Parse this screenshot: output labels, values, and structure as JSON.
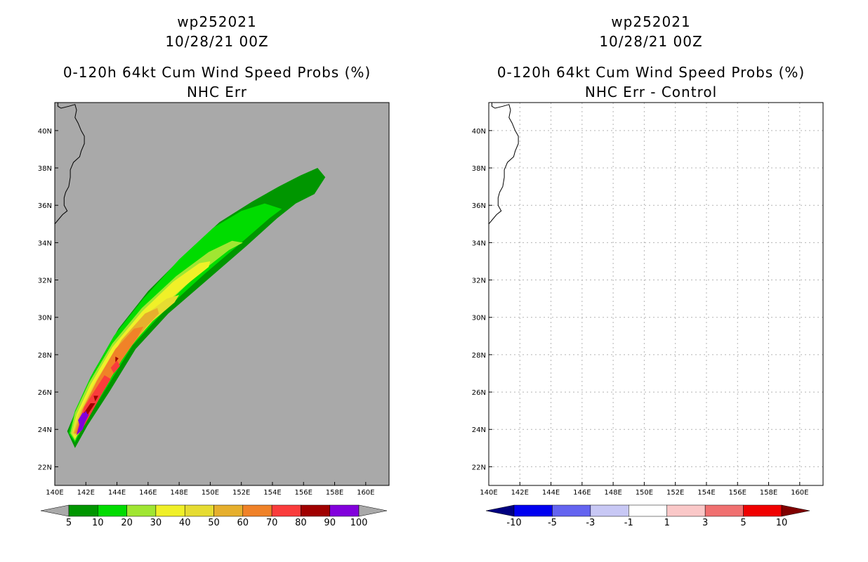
{
  "chart_data": [
    {
      "type": "heatmap",
      "id": "left",
      "storm_id": "wp252021",
      "date": "10/28/21 00Z",
      "title": "0-120h 64kt Cum Wind Speed Probs (%)",
      "subtitle": "NHC Err",
      "x_ticks": [
        "140E",
        "142E",
        "144E",
        "146E",
        "148E",
        "150E",
        "152E",
        "154E",
        "156E",
        "158E",
        "160E"
      ],
      "y_ticks": [
        "22N",
        "24N",
        "26N",
        "28N",
        "30N",
        "32N",
        "34N",
        "36N",
        "38N",
        "40N"
      ],
      "lon_range": [
        140,
        161.5
      ],
      "lat_range": [
        21,
        41.5
      ],
      "grid": false,
      "background": "#a9a9a9",
      "colorbar": {
        "labels": [
          "5",
          "10",
          "20",
          "30",
          "40",
          "50",
          "60",
          "70",
          "80",
          "90",
          "100"
        ],
        "colors": [
          "#009600",
          "#00dc00",
          "#a0e632",
          "#f0f028",
          "#e6dc32",
          "#e6af2d",
          "#f08228",
          "#fa3c3c",
          "#a00000",
          "#8200dc"
        ],
        "under_color": "#a9a9a9",
        "over_color": "#a9a9a9"
      },
      "contours": [
        {
          "level": "5",
          "color": "#009600",
          "points": [
            [
              140.8,
              23.9
            ],
            [
              141.3,
              23.0
            ],
            [
              142.1,
              24.2
            ],
            [
              143.5,
              26.0
            ],
            [
              145.2,
              28.3
            ],
            [
              147.3,
              30.2
            ],
            [
              149.8,
              32.0
            ],
            [
              152.3,
              33.8
            ],
            [
              154.3,
              35.3
            ],
            [
              155.5,
              36.1
            ],
            [
              156.7,
              36.6
            ],
            [
              157.4,
              37.5
            ],
            [
              156.9,
              38.0
            ],
            [
              155.8,
              37.6
            ],
            [
              154.4,
              37.0
            ],
            [
              152.7,
              36.2
            ],
            [
              150.6,
              35.1
            ],
            [
              148.4,
              33.4
            ],
            [
              146.0,
              31.4
            ],
            [
              144.1,
              29.4
            ],
            [
              142.5,
              27.1
            ],
            [
              141.5,
              25.3
            ]
          ]
        },
        {
          "level": "10",
          "color": "#00dc00",
          "points": [
            [
              140.9,
              23.8
            ],
            [
              141.3,
              23.3
            ],
            [
              141.9,
              24.3
            ],
            [
              143.3,
              26.2
            ],
            [
              145.0,
              28.5
            ],
            [
              147.1,
              30.4
            ],
            [
              149.6,
              32.3
            ],
            [
              152.0,
              34.0
            ],
            [
              153.8,
              35.3
            ],
            [
              154.6,
              35.8
            ],
            [
              153.5,
              36.1
            ],
            [
              152.0,
              35.7
            ],
            [
              150.2,
              34.8
            ],
            [
              148.0,
              33.1
            ],
            [
              145.7,
              31.0
            ],
            [
              143.8,
              29.0
            ],
            [
              142.3,
              26.8
            ],
            [
              141.3,
              25.0
            ]
          ]
        },
        {
          "level": "20",
          "color": "#a0e632",
          "points": [
            [
              141.0,
              23.8
            ],
            [
              141.3,
              23.4
            ],
            [
              141.8,
              24.3
            ],
            [
              143.1,
              26.2
            ],
            [
              144.8,
              28.5
            ],
            [
              146.8,
              30.4
            ],
            [
              149.2,
              32.3
            ],
            [
              151.2,
              33.6
            ],
            [
              152.1,
              34.0
            ],
            [
              151.4,
              34.1
            ],
            [
              149.9,
              33.5
            ],
            [
              147.8,
              32.2
            ],
            [
              145.6,
              30.5
            ],
            [
              143.7,
              28.6
            ],
            [
              142.2,
              26.5
            ],
            [
              141.3,
              24.9
            ]
          ]
        },
        {
          "level": "30",
          "color": "#f0f028",
          "points": [
            [
              141.1,
              23.8
            ],
            [
              141.3,
              23.5
            ],
            [
              141.8,
              24.3
            ],
            [
              143.0,
              26.2
            ],
            [
              144.6,
              28.4
            ],
            [
              146.4,
              30.2
            ],
            [
              148.4,
              31.7
            ],
            [
              149.9,
              32.7
            ],
            [
              150.0,
              33.0
            ],
            [
              149.3,
              32.9
            ],
            [
              147.6,
              31.9
            ],
            [
              145.6,
              30.3
            ],
            [
              143.7,
              28.4
            ],
            [
              142.3,
              26.4
            ],
            [
              141.4,
              24.8
            ]
          ]
        },
        {
          "level": "40",
          "color": "#e6dc32",
          "points": [
            [
              141.1,
              23.8
            ],
            [
              141.4,
              23.6
            ],
            [
              141.9,
              24.4
            ],
            [
              143.1,
              26.2
            ],
            [
              144.7,
              28.3
            ],
            [
              146.3,
              29.8
            ],
            [
              147.7,
              30.8
            ],
            [
              148.0,
              31.2
            ],
            [
              147.2,
              31.0
            ],
            [
              145.6,
              30.0
            ],
            [
              143.9,
              28.3
            ],
            [
              142.5,
              26.4
            ],
            [
              141.5,
              24.8
            ]
          ]
        },
        {
          "level": "50",
          "color": "#e6af2d",
          "points": [
            [
              141.2,
              23.8
            ],
            [
              141.5,
              23.7
            ],
            [
              142.0,
              24.5
            ],
            [
              143.1,
              26.2
            ],
            [
              144.6,
              28.1
            ],
            [
              145.9,
              29.5
            ],
            [
              146.7,
              30.2
            ],
            [
              146.6,
              30.5
            ],
            [
              145.8,
              30.2
            ],
            [
              144.3,
              28.8
            ],
            [
              142.9,
              26.8
            ],
            [
              141.7,
              25.0
            ]
          ]
        },
        {
          "level": "60",
          "color": "#f08228",
          "points": [
            [
              141.3,
              23.8
            ],
            [
              141.6,
              23.8
            ],
            [
              142.2,
              24.7
            ],
            [
              143.2,
              26.2
            ],
            [
              144.3,
              27.7
            ],
            [
              145.3,
              28.9
            ],
            [
              145.7,
              29.5
            ],
            [
              145.1,
              29.4
            ],
            [
              143.9,
              28.3
            ],
            [
              142.7,
              26.6
            ],
            [
              141.8,
              25.1
            ]
          ]
        },
        {
          "level": "70",
          "color": "#fa3c3c",
          "points": [
            [
              141.4,
              23.8
            ],
            [
              141.7,
              23.9
            ],
            [
              142.3,
              24.8
            ],
            [
              143.1,
              26.0
            ],
            [
              143.6,
              26.7
            ],
            [
              143.2,
              26.9
            ],
            [
              142.5,
              26.0
            ],
            [
              141.9,
              25.2
            ]
          ]
        },
        {
          "level": "70",
          "color": "#fa3c3c",
          "points": [
            [
              143.8,
              27.0
            ],
            [
              144.2,
              27.4
            ],
            [
              144.0,
              27.7
            ],
            [
              143.6,
              27.3
            ]
          ]
        },
        {
          "level": "80",
          "color": "#a00000",
          "points": [
            [
              141.6,
              24.0
            ],
            [
              141.8,
              24.2
            ],
            [
              142.2,
              24.9
            ],
            [
              142.6,
              25.4
            ],
            [
              142.3,
              25.4
            ],
            [
              141.8,
              24.8
            ]
          ]
        },
        {
          "level": "80",
          "color": "#a00000",
          "points": [
            [
              142.6,
              25.5
            ],
            [
              142.8,
              25.8
            ],
            [
              142.5,
              25.8
            ]
          ]
        },
        {
          "level": "80",
          "color": "#a00000",
          "points": [
            [
              143.9,
              27.6
            ],
            [
              144.1,
              27.8
            ],
            [
              143.9,
              27.9
            ]
          ]
        },
        {
          "level": "90",
          "color": "#8200dc",
          "points": [
            [
              141.6,
              24.2
            ],
            [
              142.0,
              24.7
            ],
            [
              141.9,
              24.3
            ],
            [
              142.2,
              24.8
            ],
            [
              141.8,
              24.9
            ],
            [
              141.5,
              24.5
            ]
          ]
        },
        {
          "level": "100",
          "color": "#8200dc",
          "points": [
            [
              141.4,
              23.7
            ],
            [
              141.8,
              24.0
            ],
            [
              142.1,
              24.8
            ],
            [
              142.0,
              25.0
            ],
            [
              141.7,
              24.6
            ],
            [
              141.5,
              24.0
            ]
          ]
        }
      ]
    },
    {
      "type": "heatmap",
      "id": "right",
      "storm_id": "wp252021",
      "date": "10/28/21 00Z",
      "title": "0-120h 64kt Cum Wind Speed Probs (%)",
      "subtitle": "NHC Err - Control",
      "x_ticks": [
        "140E",
        "142E",
        "144E",
        "146E",
        "148E",
        "150E",
        "152E",
        "154E",
        "156E",
        "158E",
        "160E"
      ],
      "y_ticks": [
        "22N",
        "24N",
        "26N",
        "28N",
        "30N",
        "32N",
        "34N",
        "36N",
        "38N",
        "40N"
      ],
      "lon_range": [
        140,
        161.5
      ],
      "lat_range": [
        21,
        41.5
      ],
      "grid": true,
      "background": "#ffffff",
      "colorbar": {
        "labels": [
          "-10",
          "-5",
          "-3",
          "-1",
          "1",
          "3",
          "5",
          "10"
        ],
        "colors": [
          "#0000f0",
          "#6464f0",
          "#c8c8f5",
          "#ffffff",
          "#fac8c8",
          "#f07070",
          "#f00000"
        ],
        "under_color": "#000080",
        "over_color": "#800000"
      },
      "contours": []
    }
  ]
}
